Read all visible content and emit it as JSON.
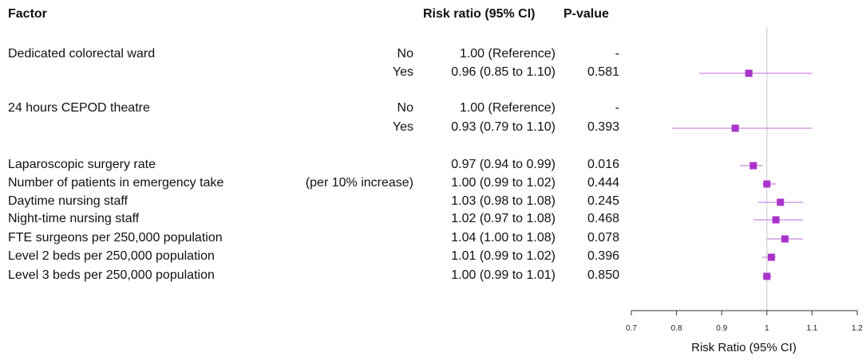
{
  "header": {
    "factor": "Factor",
    "risk_ratio": "Risk ratio (95% CI)",
    "p_value": "P-value"
  },
  "chart_data": {
    "type": "forest",
    "xlabel": "Risk Ratio (95% CI)",
    "xlim": [
      0.7,
      1.2
    ],
    "xticks": [
      "0.7",
      "0.8",
      "0.9",
      "1",
      "1.1",
      "1.2"
    ],
    "reference_line": 1.0,
    "marker_color": "#aa33cc",
    "rows": [
      {
        "factor": "Dedicated colorectal ward",
        "level": "No",
        "rr_text": "1.00 (Reference)",
        "p": "-",
        "rr": null,
        "lo": null,
        "hi": null
      },
      {
        "factor": "",
        "level": "Yes",
        "rr_text": "0.96 (0.85 to 1.10)",
        "p": "0.581",
        "rr": 0.96,
        "lo": 0.85,
        "hi": 1.1
      },
      {
        "factor": "24 hours CEPOD theatre",
        "level": "No",
        "rr_text": "1.00 (Reference)",
        "p": "-",
        "rr": null,
        "lo": null,
        "hi": null
      },
      {
        "factor": "",
        "level": "Yes",
        "rr_text": "0.93 (0.79 to 1.10)",
        "p": "0.393",
        "rr": 0.93,
        "lo": 0.79,
        "hi": 1.1
      },
      {
        "factor": "Laparoscopic surgery rate",
        "level": "",
        "rr_text": "0.97 (0.94 to 0.99)",
        "p": "0.016",
        "rr": 0.97,
        "lo": 0.94,
        "hi": 0.99
      },
      {
        "factor": "Number of patients in emergency take",
        "level": "(per 10% increase)",
        "rr_text": "1.00 (0.99 to 1.02)",
        "p": "0.444",
        "rr": 1.0,
        "lo": 0.99,
        "hi": 1.02
      },
      {
        "factor": "Daytime nursing staff",
        "level": "",
        "rr_text": "1.03 (0.98 to 1.08)",
        "p": "0.245",
        "rr": 1.03,
        "lo": 0.98,
        "hi": 1.08
      },
      {
        "factor": "Night-time nursing staff",
        "level": "",
        "rr_text": "1.02 (0.97 to 1.08)",
        "p": "0.468",
        "rr": 1.02,
        "lo": 0.97,
        "hi": 1.08
      },
      {
        "factor": "FTE surgeons per 250,000 population",
        "level": "",
        "rr_text": "1.04 (1.00 to 1.08)",
        "p": "0.078",
        "rr": 1.04,
        "lo": 1.0,
        "hi": 1.08
      },
      {
        "factor": "Level 2 beds per 250,000 population",
        "level": "",
        "rr_text": "1.01 (0.99 to 1.02)",
        "p": "0.396",
        "rr": 1.01,
        "lo": 0.99,
        "hi": 1.02
      },
      {
        "factor": "Level 3 beds per 250,000 population",
        "level": "",
        "rr_text": "1.00 (0.99 to 1.01)",
        "p": "0.850",
        "rr": 1.0,
        "lo": 0.99,
        "hi": 1.01
      }
    ]
  }
}
